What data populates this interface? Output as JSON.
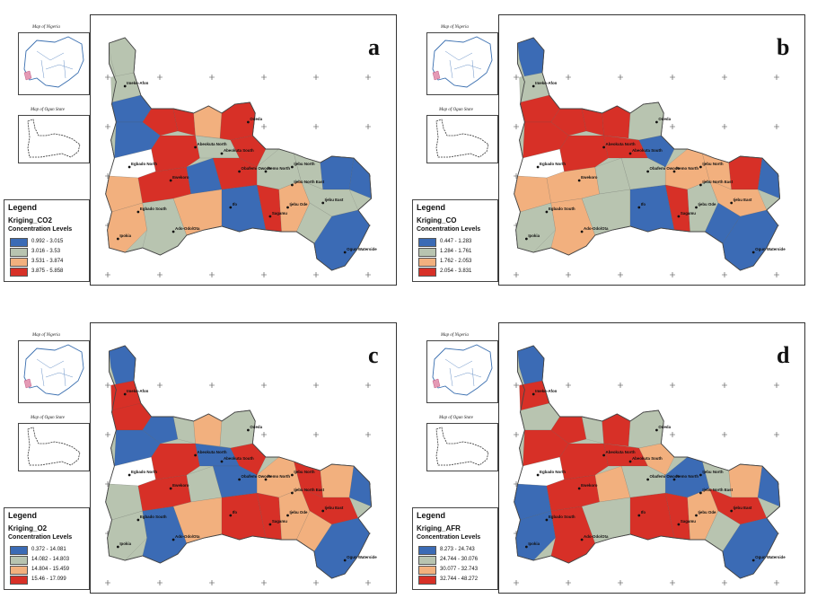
{
  "panels": [
    {
      "letter": "a",
      "legend_title": "Legend",
      "layer": "Kriging_CO2",
      "levels_label": "Concentration Levels",
      "classes": [
        {
          "range": "0.992 - 3.015",
          "color": "#3b6bb5"
        },
        {
          "range": "3.016 - 3.53",
          "color": "#b8c4b0"
        },
        {
          "range": "3.531 - 3.874",
          "color": "#f2b07e"
        },
        {
          "range": "3.875 - 5.858",
          "color": "#d73027"
        }
      ],
      "inset_nigeria": "Map of Nigeria",
      "inset_ogun": "Map of Ogun State"
    },
    {
      "letter": "b",
      "legend_title": "Legend",
      "layer": "Kriging_CO",
      "levels_label": "Concentration Levels",
      "classes": [
        {
          "range": "0.447 - 1.283",
          "color": "#3b6bb5"
        },
        {
          "range": "1.284 - 1.761",
          "color": "#b8c4b0"
        },
        {
          "range": "1.762 - 2.053",
          "color": "#f2b07e"
        },
        {
          "range": "2.054 - 3.831",
          "color": "#d73027"
        }
      ],
      "inset_nigeria": "Map of Nigeria",
      "inset_ogun": "Map of Ogun State"
    },
    {
      "letter": "c",
      "legend_title": "Legend",
      "layer": "Kriging_O2",
      "levels_label": "Concentration Levels",
      "classes": [
        {
          "range": "0.372 - 14.081",
          "color": "#3b6bb5"
        },
        {
          "range": "14.082 - 14.803",
          "color": "#b8c4b0"
        },
        {
          "range": "14.804 - 15.459",
          "color": "#f2b07e"
        },
        {
          "range": "15.46 - 17.099",
          "color": "#d73027"
        }
      ],
      "inset_nigeria": "Map of Nigeria",
      "inset_ogun": "Map of Ogun State"
    },
    {
      "letter": "d",
      "legend_title": "Legend",
      "layer": "Kriging_AFR",
      "levels_label": "Concentration Levels",
      "classes": [
        {
          "range": "8.273 - 24.743",
          "color": "#3b6bb5"
        },
        {
          "range": "24.744 - 30.076",
          "color": "#b8c4b0"
        },
        {
          "range": "30.077 - 32.743",
          "color": "#f2b07e"
        },
        {
          "range": "32.744 - 48.272",
          "color": "#d73027"
        }
      ],
      "inset_nigeria": "Map of Nigeria",
      "inset_ogun": "Map of Ogun State"
    }
  ],
  "towns": [
    "Imeko-Afon",
    "Abeokuta North",
    "Abeokuta South",
    "Odeda",
    "Egbado North",
    "Ewekoro",
    "Obafemi Owode",
    "Remo North",
    "Ijebu North",
    "Ijebu North East",
    "Ijebu East",
    "Ifo",
    "Egbado South",
    "Sagamu",
    "Ijebu Ode",
    "Ipokia",
    "Ado-Odo/Ota",
    "Ogun Waterside"
  ],
  "colors": {
    "blue": "#3b6bb5",
    "grey": "#b8c4b0",
    "orange": "#f2b07e",
    "red": "#d73027",
    "white": "#ffffff"
  }
}
